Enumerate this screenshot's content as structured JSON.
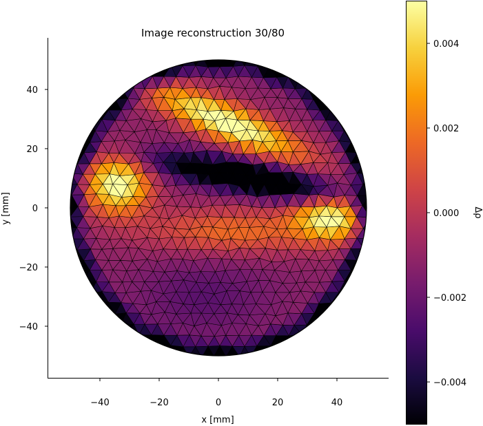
{
  "chart_data": {
    "type": "heatmap",
    "title": "Image reconstruction 30/80",
    "xlabel": "x [mm]",
    "ylabel": "y [mm]",
    "xlim": [
      -58,
      57
    ],
    "ylim": [
      -57,
      57
    ],
    "x_ticks": [
      -40,
      -20,
      0,
      20,
      40
    ],
    "y_ticks": [
      -40,
      -20,
      0,
      20,
      40
    ],
    "x_tick_labels": [
      "−40",
      "−20",
      "0",
      "20",
      "40"
    ],
    "y_tick_labels": [
      "−40",
      "−20",
      "0",
      "20",
      "40"
    ],
    "domain_radius": 50,
    "mesh": "triangular",
    "colormap": "inferno",
    "colorbar": {
      "label": "Δρ",
      "vmin": -0.005,
      "vmax": 0.005,
      "ticks": [
        0.004,
        0.002,
        0.0,
        -0.002,
        -0.004
      ],
      "tick_labels": [
        "0.004",
        "0.002",
        "0.000",
        "−0.002",
        "−0.004"
      ]
    },
    "features": [
      {
        "region": "upper band",
        "center": [
          3,
          30
        ],
        "value": 0.0045
      },
      {
        "region": "left lobe",
        "center": [
          -34,
          8
        ],
        "value": 0.0045
      },
      {
        "region": "right lobe",
        "center": [
          38,
          -3
        ],
        "value": 0.004
      },
      {
        "region": "dark band",
        "center": [
          10,
          12
        ],
        "value": -0.005
      },
      {
        "region": "lower field",
        "center": [
          -5,
          -30
        ],
        "value": -0.002
      }
    ]
  },
  "colors": {
    "inferno": [
      "#000004",
      "#1b0c41",
      "#4a0c6b",
      "#781c6d",
      "#a52c60",
      "#cf4446",
      "#ed6925",
      "#fb9b06",
      "#f7d13d",
      "#fcffa4"
    ]
  }
}
